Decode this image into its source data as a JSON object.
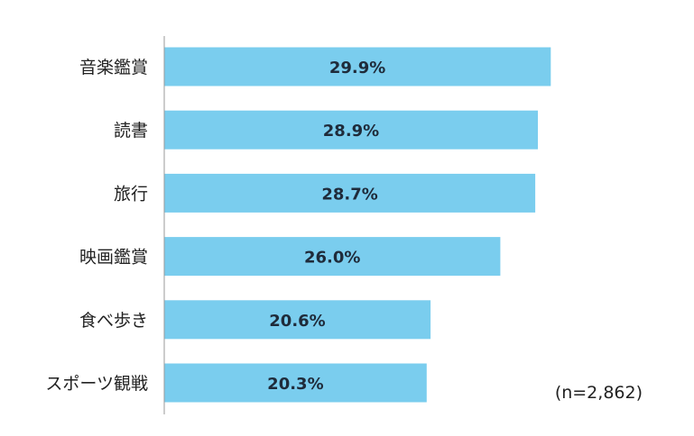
{
  "chart_data": {
    "type": "bar",
    "orientation": "horizontal",
    "categories": [
      "音楽鑑賞",
      "読書",
      "旅行",
      "映画鑑賞",
      "食べ歩き",
      "スポーツ観戦"
    ],
    "values": [
      29.9,
      28.9,
      28.7,
      26.0,
      20.6,
      20.3
    ],
    "value_labels": [
      "29.9%",
      "28.9%",
      "28.7%",
      "26.0%",
      "20.6%",
      "20.3%"
    ],
    "xlim": [
      0,
      37
    ],
    "grid": false,
    "note": "(n=2,862)",
    "colors": {
      "bar": "#7acdee",
      "axis": "#999999",
      "value_text": "#1f2b3a",
      "label_text": "#222222"
    }
  }
}
